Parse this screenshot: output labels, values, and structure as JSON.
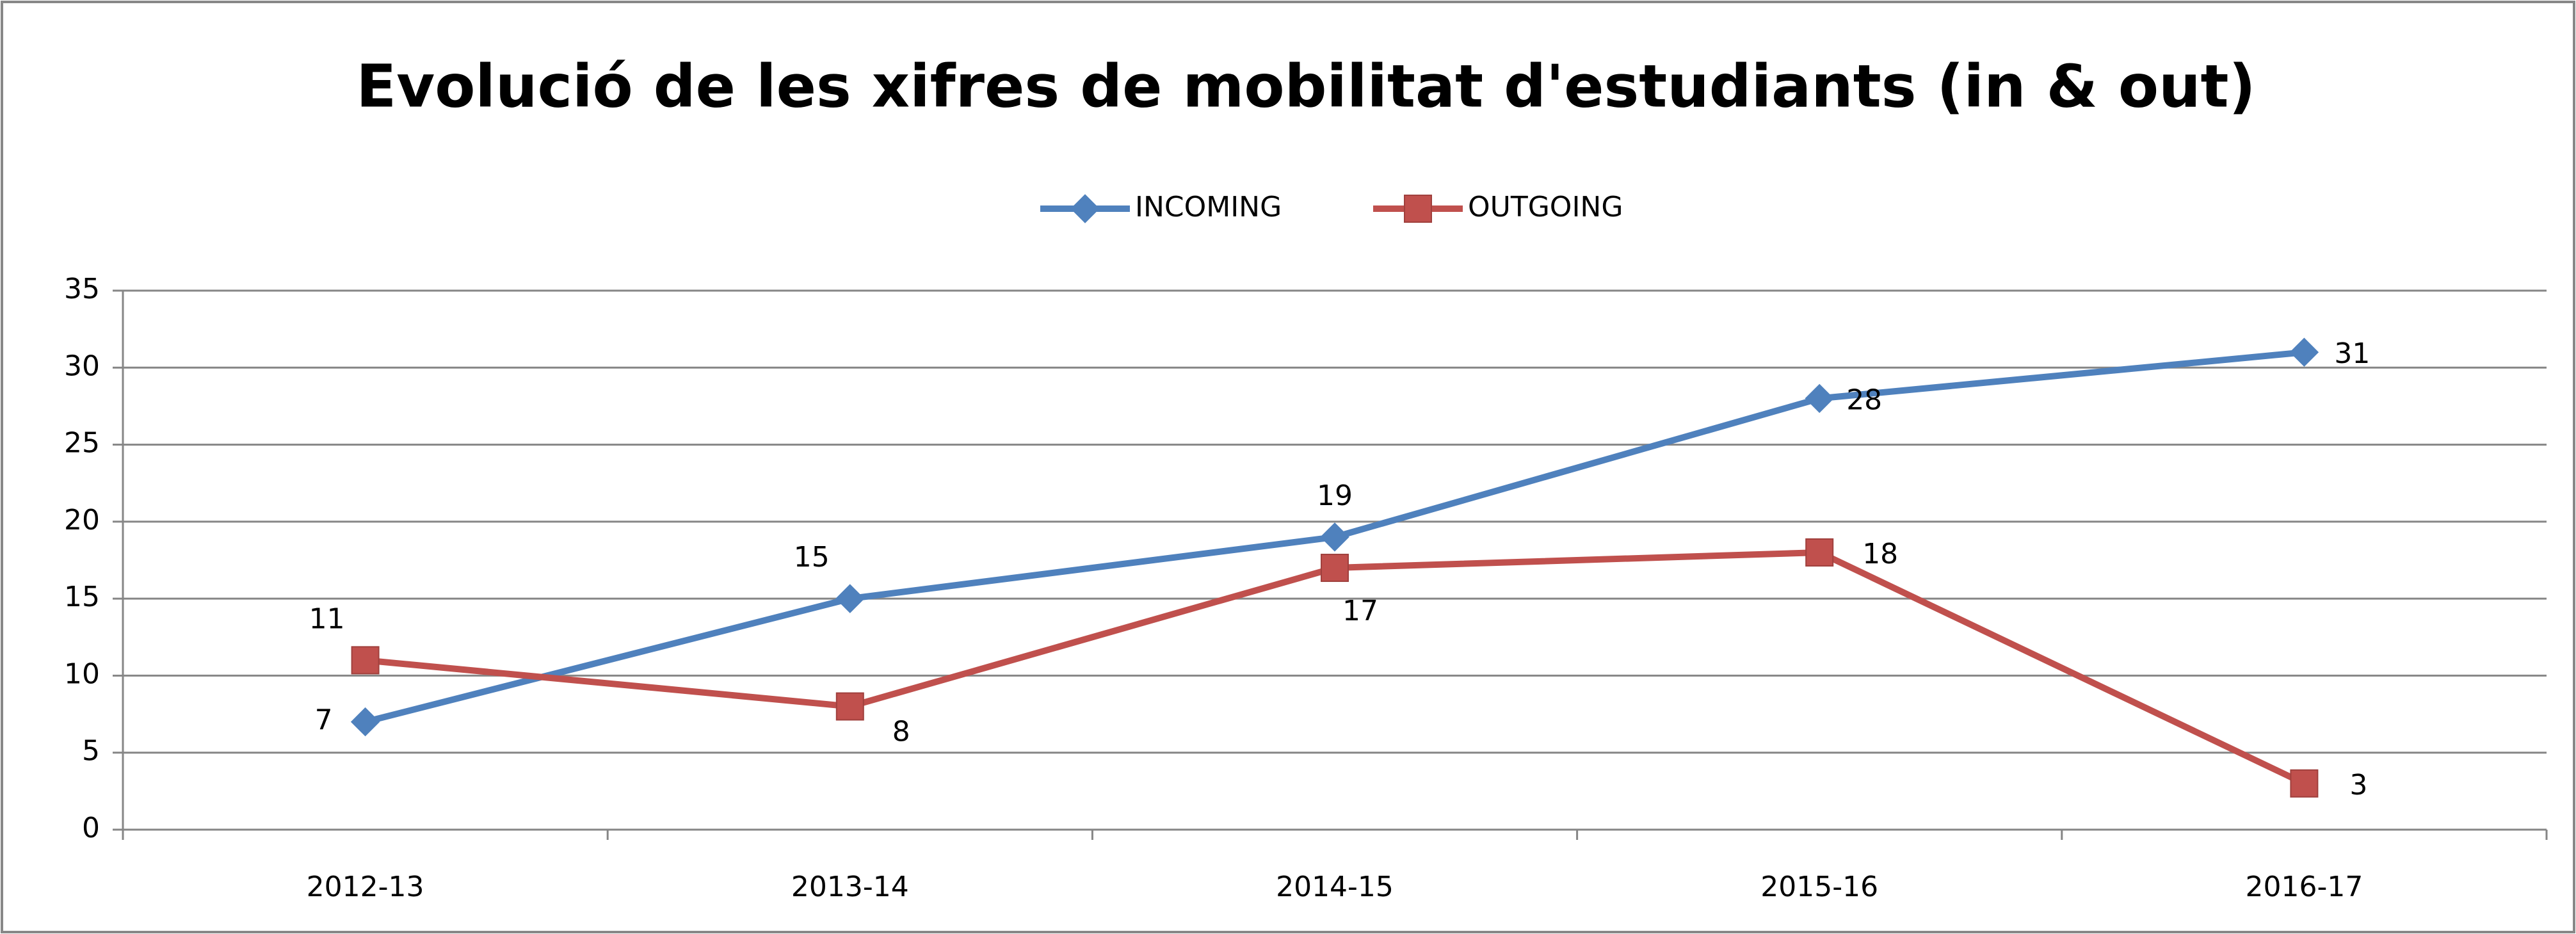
{
  "chart_data": {
    "type": "line",
    "title": "Evolució de les xifres de mobilitat d'estudiants (in & out)",
    "categories": [
      "2012-13",
      "2013-14",
      "2014-15",
      "2015-16",
      "2016-17"
    ],
    "series": [
      {
        "name": "INCOMING",
        "color": "#4f81bd",
        "marker": "diamond",
        "values": [
          7,
          15,
          19,
          28,
          31
        ]
      },
      {
        "name": "OUTGOING",
        "color": "#c0504d",
        "marker": "square",
        "values": [
          11,
          8,
          17,
          18,
          3
        ]
      }
    ],
    "ylim": [
      0,
      35
    ],
    "yticks": [
      0,
      5,
      10,
      15,
      20,
      25,
      30,
      35
    ],
    "grid": true,
    "legend": "top",
    "data_labels": true
  }
}
